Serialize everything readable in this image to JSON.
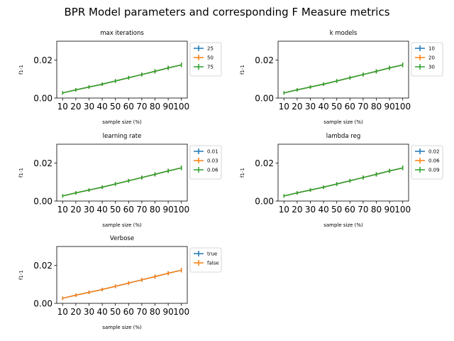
{
  "suptitle": "BPR Model parameters and corresponding F Measure metrics",
  "chart_data": [
    {
      "type": "line",
      "title": "max iterations",
      "xlabel": "sample size (%)",
      "ylabel": "f1-1",
      "ylim": [
        0,
        0.03
      ],
      "yticks": [
        "0.00",
        "0.02"
      ],
      "categories": [
        "10",
        "20",
        "30",
        "40",
        "50",
        "60",
        "70",
        "80",
        "90",
        "100"
      ],
      "legend_position": "outside-right",
      "series": [
        {
          "name": "25",
          "color": "#1f77b4",
          "values": [
            0.0027,
            0.0043,
            0.0058,
            0.0073,
            0.009,
            0.0107,
            0.0124,
            0.0141,
            0.0159,
            0.0175
          ],
          "error": [
            0.0009,
            0.0009,
            0.0009,
            0.0009,
            0.001,
            0.001,
            0.001,
            0.0011,
            0.0011,
            0.0012
          ]
        },
        {
          "name": "50",
          "color": "#ff7f0e",
          "values": [
            0.0027,
            0.0043,
            0.0058,
            0.0073,
            0.009,
            0.0107,
            0.0124,
            0.0141,
            0.0159,
            0.0175
          ],
          "error": [
            0.0009,
            0.0009,
            0.0009,
            0.0009,
            0.001,
            0.001,
            0.001,
            0.0011,
            0.0011,
            0.0012
          ]
        },
        {
          "name": "75",
          "color": "#2ca02c",
          "values": [
            0.0027,
            0.0043,
            0.0058,
            0.0073,
            0.009,
            0.0107,
            0.0124,
            0.0141,
            0.0159,
            0.0175
          ],
          "error": [
            0.0009,
            0.0009,
            0.0009,
            0.0009,
            0.001,
            0.001,
            0.001,
            0.0011,
            0.0011,
            0.0012
          ]
        }
      ]
    },
    {
      "type": "line",
      "title": "k models",
      "xlabel": "sample size (%)",
      "ylabel": "f1-1",
      "ylim": [
        0,
        0.03
      ],
      "yticks": [
        "0.00",
        "0.02"
      ],
      "categories": [
        "10",
        "20",
        "30",
        "40",
        "50",
        "60",
        "70",
        "80",
        "90",
        "100"
      ],
      "legend_position": "outside-right",
      "series": [
        {
          "name": "10",
          "color": "#1f77b4",
          "values": [
            0.0027,
            0.0043,
            0.0058,
            0.0073,
            0.009,
            0.0107,
            0.0124,
            0.0141,
            0.0159,
            0.0175
          ],
          "error": [
            0.0009,
            0.0009,
            0.0009,
            0.0009,
            0.001,
            0.001,
            0.001,
            0.0011,
            0.0011,
            0.0012
          ]
        },
        {
          "name": "20",
          "color": "#ff7f0e",
          "values": [
            0.0027,
            0.0043,
            0.0058,
            0.0073,
            0.009,
            0.0107,
            0.0124,
            0.0141,
            0.0159,
            0.0175
          ],
          "error": [
            0.0009,
            0.0009,
            0.0009,
            0.0009,
            0.001,
            0.001,
            0.001,
            0.0011,
            0.0011,
            0.0012
          ]
        },
        {
          "name": "30",
          "color": "#2ca02c",
          "values": [
            0.0027,
            0.0043,
            0.0058,
            0.0073,
            0.009,
            0.0107,
            0.0124,
            0.0141,
            0.0159,
            0.0175
          ],
          "error": [
            0.0009,
            0.0009,
            0.0009,
            0.0009,
            0.001,
            0.001,
            0.001,
            0.0011,
            0.0011,
            0.0012
          ]
        }
      ]
    },
    {
      "type": "line",
      "title": "learning rate",
      "xlabel": "sample size (%)",
      "ylabel": "f1-1",
      "ylim": [
        0,
        0.03
      ],
      "yticks": [
        "0.00",
        "0.02"
      ],
      "categories": [
        "10",
        "20",
        "30",
        "40",
        "50",
        "60",
        "70",
        "80",
        "90",
        "100"
      ],
      "legend_position": "outside-right",
      "series": [
        {
          "name": "0.01",
          "color": "#1f77b4",
          "values": [
            0.0027,
            0.0043,
            0.0058,
            0.0073,
            0.009,
            0.0107,
            0.0124,
            0.0141,
            0.0159,
            0.0175
          ],
          "error": [
            0.0009,
            0.0009,
            0.0009,
            0.0009,
            0.001,
            0.001,
            0.001,
            0.0011,
            0.0011,
            0.0012
          ]
        },
        {
          "name": "0.03",
          "color": "#ff7f0e",
          "values": [
            0.0027,
            0.0043,
            0.0058,
            0.0073,
            0.009,
            0.0107,
            0.0124,
            0.0141,
            0.0159,
            0.0175
          ],
          "error": [
            0.0009,
            0.0009,
            0.0009,
            0.0009,
            0.001,
            0.001,
            0.001,
            0.0011,
            0.0011,
            0.0012
          ]
        },
        {
          "name": "0.06",
          "color": "#2ca02c",
          "values": [
            0.0027,
            0.0043,
            0.0058,
            0.0073,
            0.009,
            0.0107,
            0.0124,
            0.0141,
            0.0159,
            0.0175
          ],
          "error": [
            0.0009,
            0.0009,
            0.0009,
            0.0009,
            0.001,
            0.001,
            0.001,
            0.0011,
            0.0011,
            0.0012
          ]
        }
      ]
    },
    {
      "type": "line",
      "title": "lambda reg",
      "xlabel": "sample size (%)",
      "ylabel": "f1-1",
      "ylim": [
        0,
        0.03
      ],
      "yticks": [
        "0.00",
        "0.02"
      ],
      "categories": [
        "10",
        "20",
        "30",
        "40",
        "50",
        "60",
        "70",
        "80",
        "90",
        "100"
      ],
      "legend_position": "outside-right",
      "series": [
        {
          "name": "0.02",
          "color": "#1f77b4",
          "values": [
            0.0027,
            0.0043,
            0.0058,
            0.0073,
            0.009,
            0.0107,
            0.0124,
            0.0141,
            0.0159,
            0.0175
          ],
          "error": [
            0.0009,
            0.0009,
            0.0009,
            0.0009,
            0.001,
            0.001,
            0.001,
            0.0011,
            0.0011,
            0.0012
          ]
        },
        {
          "name": "0.06",
          "color": "#ff7f0e",
          "values": [
            0.0027,
            0.0043,
            0.0058,
            0.0073,
            0.009,
            0.0107,
            0.0124,
            0.0141,
            0.0159,
            0.0175
          ],
          "error": [
            0.0009,
            0.0009,
            0.0009,
            0.0009,
            0.001,
            0.001,
            0.001,
            0.0011,
            0.0011,
            0.0012
          ]
        },
        {
          "name": "0.09",
          "color": "#2ca02c",
          "values": [
            0.0027,
            0.0043,
            0.0058,
            0.0073,
            0.009,
            0.0107,
            0.0124,
            0.0141,
            0.0159,
            0.0175
          ],
          "error": [
            0.0009,
            0.0009,
            0.0009,
            0.0009,
            0.001,
            0.001,
            0.001,
            0.0011,
            0.0011,
            0.0012
          ]
        }
      ]
    },
    {
      "type": "line",
      "title": "Verbose",
      "xlabel": "sample size (%)",
      "ylabel": "f1-1",
      "ylim": [
        0,
        0.03
      ],
      "yticks": [
        "0.00",
        "0.02"
      ],
      "categories": [
        "10",
        "20",
        "30",
        "40",
        "50",
        "60",
        "70",
        "80",
        "90",
        "100"
      ],
      "legend_position": "outside-right",
      "series": [
        {
          "name": "true",
          "color": "#1f77b4",
          "values": [
            0.0027,
            0.0043,
            0.0058,
            0.0073,
            0.009,
            0.0107,
            0.0124,
            0.0141,
            0.0159,
            0.0175
          ],
          "error": [
            0.0009,
            0.0009,
            0.0009,
            0.0009,
            0.001,
            0.001,
            0.001,
            0.0011,
            0.0011,
            0.0012
          ]
        },
        {
          "name": "false",
          "color": "#ff7f0e",
          "values": [
            0.0027,
            0.0043,
            0.0058,
            0.0073,
            0.009,
            0.0107,
            0.0124,
            0.0141,
            0.0159,
            0.0175
          ],
          "error": [
            0.0009,
            0.0009,
            0.0009,
            0.0009,
            0.001,
            0.001,
            0.001,
            0.0011,
            0.0011,
            0.0012
          ]
        }
      ]
    }
  ]
}
